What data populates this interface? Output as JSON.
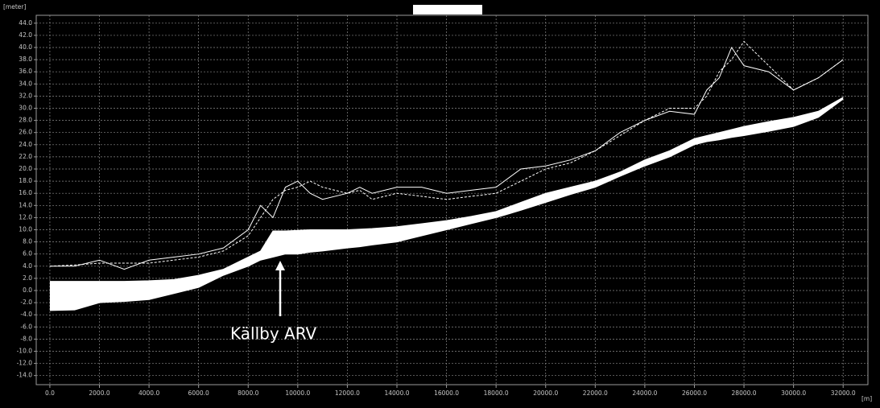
{
  "chart_data": {
    "type": "line",
    "y_label": "[meter]",
    "x_label": "[m]",
    "annotation": "Källby ARV",
    "grid": true,
    "xlim": [
      -550,
      33000
    ],
    "ylim": [
      -15.5,
      45.3
    ],
    "xticks": [
      {
        "value": 0,
        "label": "0.0"
      },
      {
        "value": 2000,
        "label": "2000.0"
      },
      {
        "value": 4000,
        "label": "4000.0"
      },
      {
        "value": 6000,
        "label": "6000.0"
      },
      {
        "value": 8000,
        "label": "8000.0"
      },
      {
        "value": 10000,
        "label": "10000.0"
      },
      {
        "value": 12000,
        "label": "12000.0"
      },
      {
        "value": 14000,
        "label": "14000.0"
      },
      {
        "value": 16000,
        "label": "16000.0"
      },
      {
        "value": 18000,
        "label": "18000.0"
      },
      {
        "value": 20000,
        "label": "20000.0"
      },
      {
        "value": 22000,
        "label": "22000.0"
      },
      {
        "value": 24000,
        "label": "24000.0"
      },
      {
        "value": 26000,
        "label": "26000.0"
      },
      {
        "value": 28000,
        "label": "28000.0"
      },
      {
        "value": 30000,
        "label": "30000.0"
      },
      {
        "value": 32000,
        "label": "32000.0"
      }
    ],
    "yticks": [
      {
        "value": -14,
        "label": "-14.0"
      },
      {
        "value": -12,
        "label": "-12.0"
      },
      {
        "value": -10,
        "label": "-10.0"
      },
      {
        "value": -8,
        "label": "-8.0"
      },
      {
        "value": -6,
        "label": "-6.0"
      },
      {
        "value": -4,
        "label": "-4.0"
      },
      {
        "value": -2,
        "label": "-2.0"
      },
      {
        "value": 0,
        "label": "0.0"
      },
      {
        "value": 2,
        "label": "2.0"
      },
      {
        "value": 4,
        "label": "4.0"
      },
      {
        "value": 6,
        "label": "6.0"
      },
      {
        "value": 8,
        "label": "8.0"
      },
      {
        "value": 10,
        "label": "10.0"
      },
      {
        "value": 12,
        "label": "12.0"
      },
      {
        "value": 14,
        "label": "14.0"
      },
      {
        "value": 16,
        "label": "16.0"
      },
      {
        "value": 18,
        "label": "18.0"
      },
      {
        "value": 20,
        "label": "20.0"
      },
      {
        "value": 22,
        "label": "22.0"
      },
      {
        "value": 24,
        "label": "24.0"
      },
      {
        "value": 26,
        "label": "26.0"
      },
      {
        "value": 28,
        "label": "28.0"
      },
      {
        "value": 30,
        "label": "30.0"
      },
      {
        "value": 32,
        "label": "32.0"
      },
      {
        "value": 34,
        "label": "34.0"
      },
      {
        "value": 36,
        "label": "36.0"
      },
      {
        "value": 38,
        "label": "38.0"
      },
      {
        "value": 40,
        "label": "40.0"
      },
      {
        "value": 42,
        "label": "42.0"
      },
      {
        "value": 44,
        "label": "44.0"
      }
    ],
    "x": [
      0,
      1000,
      2000,
      3000,
      4000,
      5000,
      6000,
      7000,
      8000,
      8500,
      9000,
      9500,
      10000,
      10500,
      11000,
      12000,
      12500,
      13000,
      14000,
      15000,
      16000,
      17000,
      18000,
      19000,
      20000,
      21000,
      22000,
      23000,
      24000,
      25000,
      26000,
      26500,
      27000,
      27500,
      28000,
      29000,
      30000,
      31000,
      32000
    ],
    "fill_between": [
      2,
      3
    ],
    "series": [
      {
        "color": "#ffffff",
        "dashed": false,
        "values": [
          4,
          4,
          5,
          3.5,
          5,
          5.5,
          6,
          7,
          10,
          14,
          12,
          17,
          18,
          16,
          15,
          16,
          17,
          16,
          17,
          17,
          16,
          16.5,
          17,
          20,
          20.5,
          21.5,
          23,
          26,
          28,
          29.5,
          29,
          33,
          35,
          40,
          37,
          36,
          33,
          35,
          38
        ]
      },
      {
        "color": "#ffffff",
        "dashed": true,
        "values": [
          4,
          4.2,
          4.5,
          4.5,
          4.5,
          5,
          5.5,
          6.5,
          9,
          12,
          15,
          16.5,
          17,
          18,
          17,
          16,
          16.5,
          15,
          16,
          15.5,
          15,
          15.5,
          16,
          18,
          20,
          21,
          23,
          25.5,
          28,
          30,
          30,
          32,
          36,
          38,
          41,
          37,
          33,
          35,
          38
        ]
      },
      {
        "color": "#ffffff",
        "dashed": false,
        "values": [
          1.5,
          1.5,
          1.5,
          1.5,
          1.6,
          1.8,
          2.5,
          3.5,
          5.5,
          6.5,
          9.8,
          9.8,
          9.9,
          10,
          10,
          10,
          10.1,
          10.2,
          10.5,
          11,
          11.5,
          12.2,
          13,
          14.5,
          16,
          17,
          18,
          19.5,
          21.5,
          23,
          25,
          25.5,
          26,
          26.5,
          27,
          27.8,
          28.5,
          29.5,
          31.8
        ]
      },
      {
        "color": "#ffffff",
        "dashed": false,
        "values": [
          -3.3,
          -3.2,
          -2,
          -1.8,
          -1.5,
          -0.5,
          0.5,
          2.5,
          4,
          5,
          5.5,
          6,
          6,
          6.3,
          6.5,
          7,
          7.2,
          7.5,
          8,
          9,
          10,
          11,
          12,
          13.2,
          14.5,
          15.8,
          17,
          18.8,
          20.5,
          22,
          24,
          24.5,
          24.8,
          25.2,
          25.5,
          26.2,
          27,
          28.5,
          31.5
        ]
      }
    ]
  }
}
